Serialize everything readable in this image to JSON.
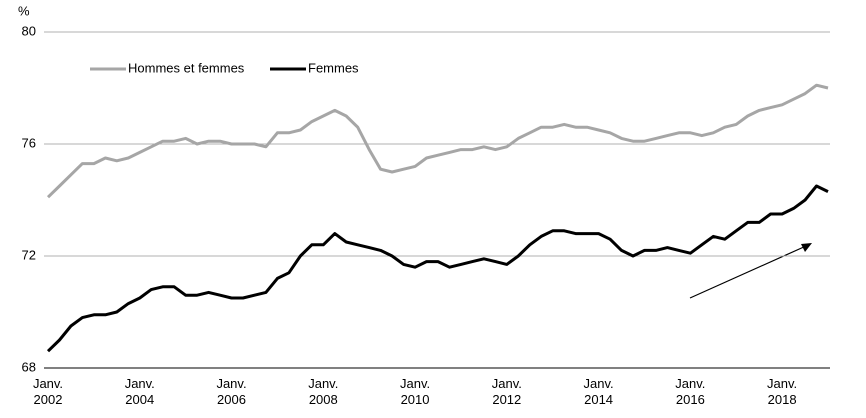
{
  "chart_data": {
    "type": "line",
    "y_label": "%",
    "categories": [
      "Janv. 2002",
      null,
      null,
      null,
      null,
      null,
      null,
      null,
      "Janv. 2004",
      null,
      null,
      null,
      null,
      null,
      null,
      null,
      "Janv. 2006",
      null,
      null,
      null,
      null,
      null,
      null,
      null,
      "Janv. 2008",
      null,
      null,
      null,
      null,
      null,
      null,
      null,
      "Janv. 2010",
      null,
      null,
      null,
      null,
      null,
      null,
      null,
      "Janv. 2012",
      null,
      null,
      null,
      null,
      null,
      null,
      null,
      "Janv. 2014",
      null,
      null,
      null,
      null,
      null,
      null,
      null,
      "Janv. 2016",
      null,
      null,
      null,
      null,
      null,
      null,
      null,
      "Janv. 2018",
      null,
      null,
      null,
      null
    ],
    "series": [
      {
        "name": "Hommes et femmes",
        "color": "#a6a6a6",
        "values": [
          74.1,
          74.5,
          74.9,
          75.3,
          75.3,
          75.5,
          75.4,
          75.5,
          75.7,
          75.9,
          76.1,
          76.1,
          76.2,
          76.0,
          76.1,
          76.1,
          76.0,
          76.0,
          76.0,
          75.9,
          76.4,
          76.4,
          76.5,
          76.8,
          77.0,
          77.2,
          77.0,
          76.6,
          75.8,
          75.1,
          75.0,
          75.1,
          75.2,
          75.5,
          75.6,
          75.7,
          75.8,
          75.8,
          75.9,
          75.8,
          75.9,
          76.2,
          76.4,
          76.6,
          76.6,
          76.7,
          76.6,
          76.6,
          76.5,
          76.4,
          76.2,
          76.1,
          76.1,
          76.2,
          76.3,
          76.4,
          76.4,
          76.3,
          76.4,
          76.6,
          76.7,
          77.0,
          77.2,
          77.3,
          77.4,
          77.6,
          77.8,
          78.1,
          78.0
        ]
      },
      {
        "name": "Femmes",
        "color": "#000000",
        "values": [
          68.6,
          69.0,
          69.5,
          69.8,
          69.9,
          69.9,
          70.0,
          70.3,
          70.5,
          70.8,
          70.9,
          70.9,
          70.6,
          70.6,
          70.7,
          70.6,
          70.5,
          70.5,
          70.6,
          70.7,
          71.2,
          71.4,
          72.0,
          72.4,
          72.4,
          72.8,
          72.5,
          72.4,
          72.3,
          72.2,
          72.0,
          71.7,
          71.6,
          71.8,
          71.8,
          71.6,
          71.7,
          71.8,
          71.9,
          71.8,
          71.7,
          72.0,
          72.4,
          72.7,
          72.9,
          72.9,
          72.8,
          72.8,
          72.8,
          72.6,
          72.2,
          72.0,
          72.2,
          72.2,
          72.3,
          72.2,
          72.1,
          72.4,
          72.7,
          72.6,
          72.9,
          73.2,
          73.2,
          73.5,
          73.5,
          73.7,
          74.0,
          74.5,
          74.3
        ]
      }
    ],
    "ylim": [
      68,
      80
    ],
    "yticks": [
      68,
      72,
      76,
      80
    ],
    "grid": true
  }
}
